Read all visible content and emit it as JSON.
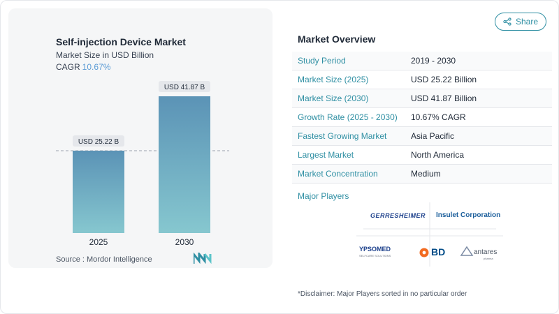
{
  "chart_data": {
    "type": "bar",
    "title": "Self-injection Device Market",
    "subtitle": "Market Size in USD Billion",
    "cagr_label": "CAGR",
    "cagr_value": "10.67%",
    "categories": [
      "2025",
      "2030"
    ],
    "values": [
      25.22,
      41.87
    ],
    "data_labels": [
      "USD 25.22 B",
      "USD 41.87 B"
    ],
    "ylim": [
      0,
      41.87
    ],
    "reference_line_at": 25.22,
    "grid": false,
    "bar_colors": [
      "#5b93b6",
      "#5b93b6"
    ],
    "bar_gradient_bottom": "#86c7cf"
  },
  "source": "Source :  Mordor Intelligence",
  "share": {
    "label": "Share",
    "icon": "share-icon"
  },
  "overview": {
    "title": "Market Overview",
    "rows": [
      {
        "key": "Study Period",
        "value": "2019 - 2030"
      },
      {
        "key": "Market Size (2025)",
        "value": "USD 25.22 Billion"
      },
      {
        "key": "Market Size (2030)",
        "value": "USD 41.87 Billion"
      },
      {
        "key": "Growth Rate (2025 - 2030)",
        "value": "10.67% CAGR"
      },
      {
        "key": "Fastest Growing Market",
        "value": "Asia Pacific"
      },
      {
        "key": "Largest Market",
        "value": "North America"
      },
      {
        "key": "Market Concentration",
        "value": "Medium"
      }
    ],
    "players_label": "Major Players",
    "players": {
      "gerresheimer": "GERRESHEIMER",
      "insulet": "Insulet Corporation",
      "ypsomed": "YPSOMED",
      "ypsomed_sub": "SELFCARE SOLUTIONS",
      "bd": "BD",
      "antares": "antares",
      "antares_sub": "pharma"
    }
  },
  "disclaimer": "*Disclaimer: Major Players sorted in no particular order",
  "colors": {
    "accent": "#2f8fa3",
    "bar_top": "#5b93b6",
    "bar_bottom": "#86c7cf",
    "cagr": "#5b9bd5",
    "bd_orange": "#f26b21",
    "bd_blue": "#004b87"
  }
}
